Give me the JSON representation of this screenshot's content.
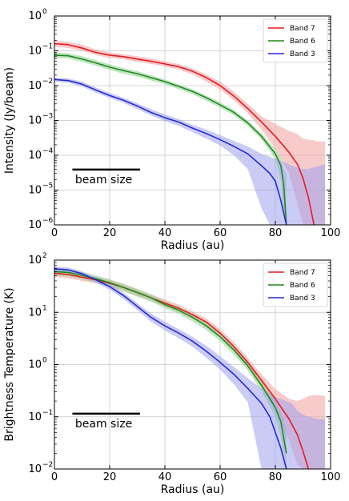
{
  "chart_data": [
    {
      "type": "line",
      "xlabel": "Radius (au)",
      "ylabel": "Intensity (Jy/beam)",
      "xlim": [
        0,
        100
      ],
      "ylim": [
        1e-06,
        1
      ],
      "yscale": "log",
      "grid": true,
      "legend_position": "top-right",
      "annotation": "beam size",
      "x_ticks": [
        "0",
        "20",
        "40",
        "60",
        "80",
        "100"
      ],
      "y_ticks": [
        {
          "value": 1e-06,
          "base": "10",
          "exp": "−6"
        },
        {
          "value": 1e-05,
          "base": "10",
          "exp": "−5"
        },
        {
          "value": 0.0001,
          "base": "10",
          "exp": "−4"
        },
        {
          "value": 0.001,
          "base": "10",
          "exp": "−3"
        },
        {
          "value": 0.01,
          "base": "10",
          "exp": "−2"
        },
        {
          "value": 0.1,
          "base": "10",
          "exp": "−1"
        },
        {
          "value": 1,
          "base": "10",
          "exp": "0"
        }
      ],
      "series": [
        {
          "name": "Band 7",
          "color": "#e8191c",
          "fill": "#f2a0a0",
          "x": [
            0,
            5,
            10,
            15,
            20,
            25,
            30,
            35,
            40,
            45,
            50,
            55,
            60,
            65,
            70,
            75,
            80,
            85,
            88,
            90,
            92,
            94
          ],
          "y": [
            0.16,
            0.15,
            0.12,
            0.09,
            0.075,
            0.068,
            0.058,
            0.05,
            0.042,
            0.035,
            0.026,
            0.017,
            0.01,
            0.005,
            0.0022,
            0.0009,
            0.00035,
            0.00012,
            5.5e-05,
            2.2e-05,
            6e-06,
            1e-06
          ],
          "band_upper": [
            0.2,
            0.18,
            0.15,
            0.11,
            0.09,
            0.08,
            0.07,
            0.06,
            0.05,
            0.042,
            0.031,
            0.021,
            0.013,
            0.0067,
            0.003,
            0.0013,
            0.0008,
            0.0005,
            0.0004,
            0.0003,
            0.00028,
            0.00027
          ],
          "band_lower": [
            0.13,
            0.12,
            0.1,
            0.075,
            0.062,
            0.057,
            0.048,
            0.042,
            0.035,
            0.029,
            0.021,
            0.013,
            0.0078,
            0.0038,
            0.0016,
            0.00055,
            0.00015,
            3e-05,
            4e-06,
            1e-06,
            1e-06,
            1e-06
          ]
        },
        {
          "name": "Band 6",
          "color": "#1d8a1d",
          "fill": "#8fcf8f",
          "x": [
            0,
            5,
            10,
            15,
            20,
            25,
            30,
            35,
            40,
            45,
            50,
            55,
            60,
            65,
            70,
            75,
            80,
            82,
            83,
            84
          ],
          "y": [
            0.075,
            0.072,
            0.058,
            0.045,
            0.034,
            0.027,
            0.022,
            0.017,
            0.013,
            0.0095,
            0.0068,
            0.0045,
            0.0028,
            0.0017,
            0.00085,
            0.00035,
            0.00011,
            5e-05,
            1.5e-05,
            1e-06
          ],
          "band_upper": [
            0.09,
            0.086,
            0.07,
            0.054,
            0.041,
            0.032,
            0.026,
            0.02,
            0.015,
            0.011,
            0.0079,
            0.0052,
            0.0033,
            0.002,
            0.001,
            0.00043,
            0.00015,
            8e-05,
            4e-05,
            3e-05
          ],
          "band_lower": [
            0.062,
            0.06,
            0.048,
            0.037,
            0.028,
            0.022,
            0.018,
            0.014,
            0.011,
            0.0079,
            0.0057,
            0.0037,
            0.0023,
            0.0014,
            0.0007,
            0.00028,
            8e-05,
            2e-05,
            2e-06,
            1e-06
          ]
        },
        {
          "name": "Band 3",
          "color": "#1f29d8",
          "fill": "#9ea2ee",
          "x": [
            0,
            5,
            10,
            15,
            20,
            25,
            30,
            35,
            40,
            45,
            50,
            55,
            60,
            65,
            70,
            75,
            78,
            80,
            82,
            84
          ],
          "y": [
            0.015,
            0.014,
            0.011,
            0.0075,
            0.0052,
            0.0038,
            0.0026,
            0.0017,
            0.0012,
            0.0009,
            0.0006,
            0.00042,
            0.00028,
            0.00018,
            0.00011,
            5e-05,
            3e-05,
            1.8e-05,
            5e-06,
            1e-06
          ],
          "band_upper": [
            0.017,
            0.016,
            0.013,
            0.0088,
            0.0062,
            0.0045,
            0.0031,
            0.0021,
            0.0015,
            0.0011,
            0.00075,
            0.00055,
            0.00038,
            0.00026,
            0.00018,
            0.00011,
            9e-05,
            8e-05,
            7e-05,
            6e-05
          ],
          "band_lower": [
            0.013,
            0.012,
            0.0094,
            0.0063,
            0.0044,
            0.0032,
            0.0021,
            0.0014,
            0.00095,
            0.0007,
            0.00046,
            0.0003,
            0.00019,
            0.0001,
            4e-05,
            3e-06,
            1e-06,
            1e-06,
            1e-06,
            1e-06
          ]
        }
      ],
      "band_extras": {
        "Band 7": {
          "x": [
            94,
            96,
            98
          ],
          "upper": [
            0.00026,
            0.00025,
            0.00025
          ]
        },
        "Band 3": {
          "x": [
            86,
            88,
            90,
            92,
            94,
            96,
            98
          ],
          "upper": [
            5e-05,
            4.5e-05,
            4e-05,
            4e-05,
            4.5e-05,
            5e-05,
            5.5e-05
          ]
        }
      }
    },
    {
      "type": "line",
      "xlabel": "Radius (au)",
      "ylabel": "Brightness Temperature (K)",
      "xlim": [
        0,
        100
      ],
      "ylim": [
        0.01,
        100
      ],
      "yscale": "log",
      "grid": true,
      "legend_position": "top-right",
      "annotation": "beam size",
      "x_ticks": [
        "0",
        "20",
        "40",
        "60",
        "80",
        "100"
      ],
      "y_ticks": [
        {
          "value": 0.01,
          "base": "10",
          "exp": "−2"
        },
        {
          "value": 0.1,
          "base": "10",
          "exp": "−1"
        },
        {
          "value": 1,
          "base": "10",
          "exp": "0"
        },
        {
          "value": 10,
          "base": "10",
          "exp": "1"
        },
        {
          "value": 100,
          "base": "10",
          "exp": "2"
        }
      ],
      "series": [
        {
          "name": "Band 7",
          "color": "#e8191c",
          "fill": "#f2a0a0",
          "x": [
            0,
            5,
            10,
            15,
            20,
            25,
            30,
            35,
            40,
            45,
            50,
            55,
            60,
            65,
            70,
            75,
            80,
            85,
            88,
            90,
            92
          ],
          "y": [
            56,
            53,
            47,
            42,
            36,
            30,
            24,
            19,
            15,
            12,
            9,
            6.5,
            4,
            2.2,
            1.1,
            0.5,
            0.22,
            0.09,
            0.045,
            0.022,
            0.01
          ],
          "band_upper": [
            66,
            62,
            55,
            48,
            42,
            35,
            28,
            22,
            17.5,
            14,
            10.5,
            7.6,
            4.8,
            2.7,
            1.35,
            0.65,
            0.34,
            0.22,
            0.2,
            0.22,
            0.25
          ],
          "band_lower": [
            48,
            45,
            40,
            36,
            31,
            26,
            20.5,
            16.5,
            13,
            10.2,
            7.6,
            5.4,
            3.3,
            1.8,
            0.85,
            0.36,
            0.13,
            0.035,
            0.012,
            0.01,
            0.01
          ]
        },
        {
          "name": "Band 6",
          "color": "#1d8a1d",
          "fill": "#8fcf8f",
          "x": [
            0,
            5,
            10,
            15,
            20,
            25,
            30,
            35,
            40,
            45,
            50,
            55,
            60,
            65,
            70,
            75,
            80,
            82,
            84
          ],
          "y": [
            60,
            58,
            51,
            44,
            37,
            30,
            24,
            19,
            14,
            11,
            8,
            5.5,
            3.4,
            1.9,
            0.95,
            0.4,
            0.15,
            0.08,
            0.02
          ],
          "band_upper": [
            70,
            67,
            59,
            51,
            43,
            35,
            28,
            22,
            16.5,
            12.8,
            9.3,
            6.4,
            4,
            2.25,
            1.15,
            0.5,
            0.2,
            0.12,
            0.06
          ],
          "band_lower": [
            51,
            49,
            43,
            37,
            31,
            25,
            20,
            16,
            12,
            9.3,
            6.7,
            4.6,
            2.8,
            1.55,
            0.77,
            0.31,
            0.1,
            0.04,
            0.01
          ]
        },
        {
          "name": "Band 3",
          "color": "#1f29d8",
          "fill": "#9ea2ee",
          "x": [
            0,
            5,
            10,
            15,
            20,
            25,
            30,
            35,
            40,
            45,
            50,
            55,
            60,
            65,
            70,
            75,
            78,
            80,
            82,
            84
          ],
          "y": [
            68,
            65,
            55,
            42,
            31,
            21,
            13,
            8,
            5.5,
            4,
            2.8,
            1.8,
            1.1,
            0.65,
            0.35,
            0.18,
            0.1,
            0.05,
            0.025,
            0.01
          ],
          "band_upper": [
            75,
            72,
            61,
            47,
            35,
            24,
            15,
            9.5,
            6.6,
            4.8,
            3.4,
            2.3,
            1.45,
            0.9,
            0.55,
            0.35,
            0.27,
            0.24,
            0.22,
            0.2
          ],
          "band_lower": [
            61,
            58,
            49,
            37,
            27,
            18,
            11,
            6.6,
            4.5,
            3.2,
            2.2,
            1.35,
            0.8,
            0.42,
            0.19,
            0.01,
            0.01,
            0.01,
            0.01,
            0.01
          ]
        }
      ],
      "band_extras": {
        "Band 7": {
          "x": [
            92,
            94,
            96,
            98
          ],
          "upper": [
            0.25,
            0.26,
            0.26,
            0.25
          ]
        },
        "Band 3": {
          "x": [
            86,
            88,
            90,
            92,
            94,
            96,
            98
          ],
          "upper": [
            0.18,
            0.13,
            0.11,
            0.1,
            0.095,
            0.09,
            0.09
          ]
        }
      }
    }
  ]
}
